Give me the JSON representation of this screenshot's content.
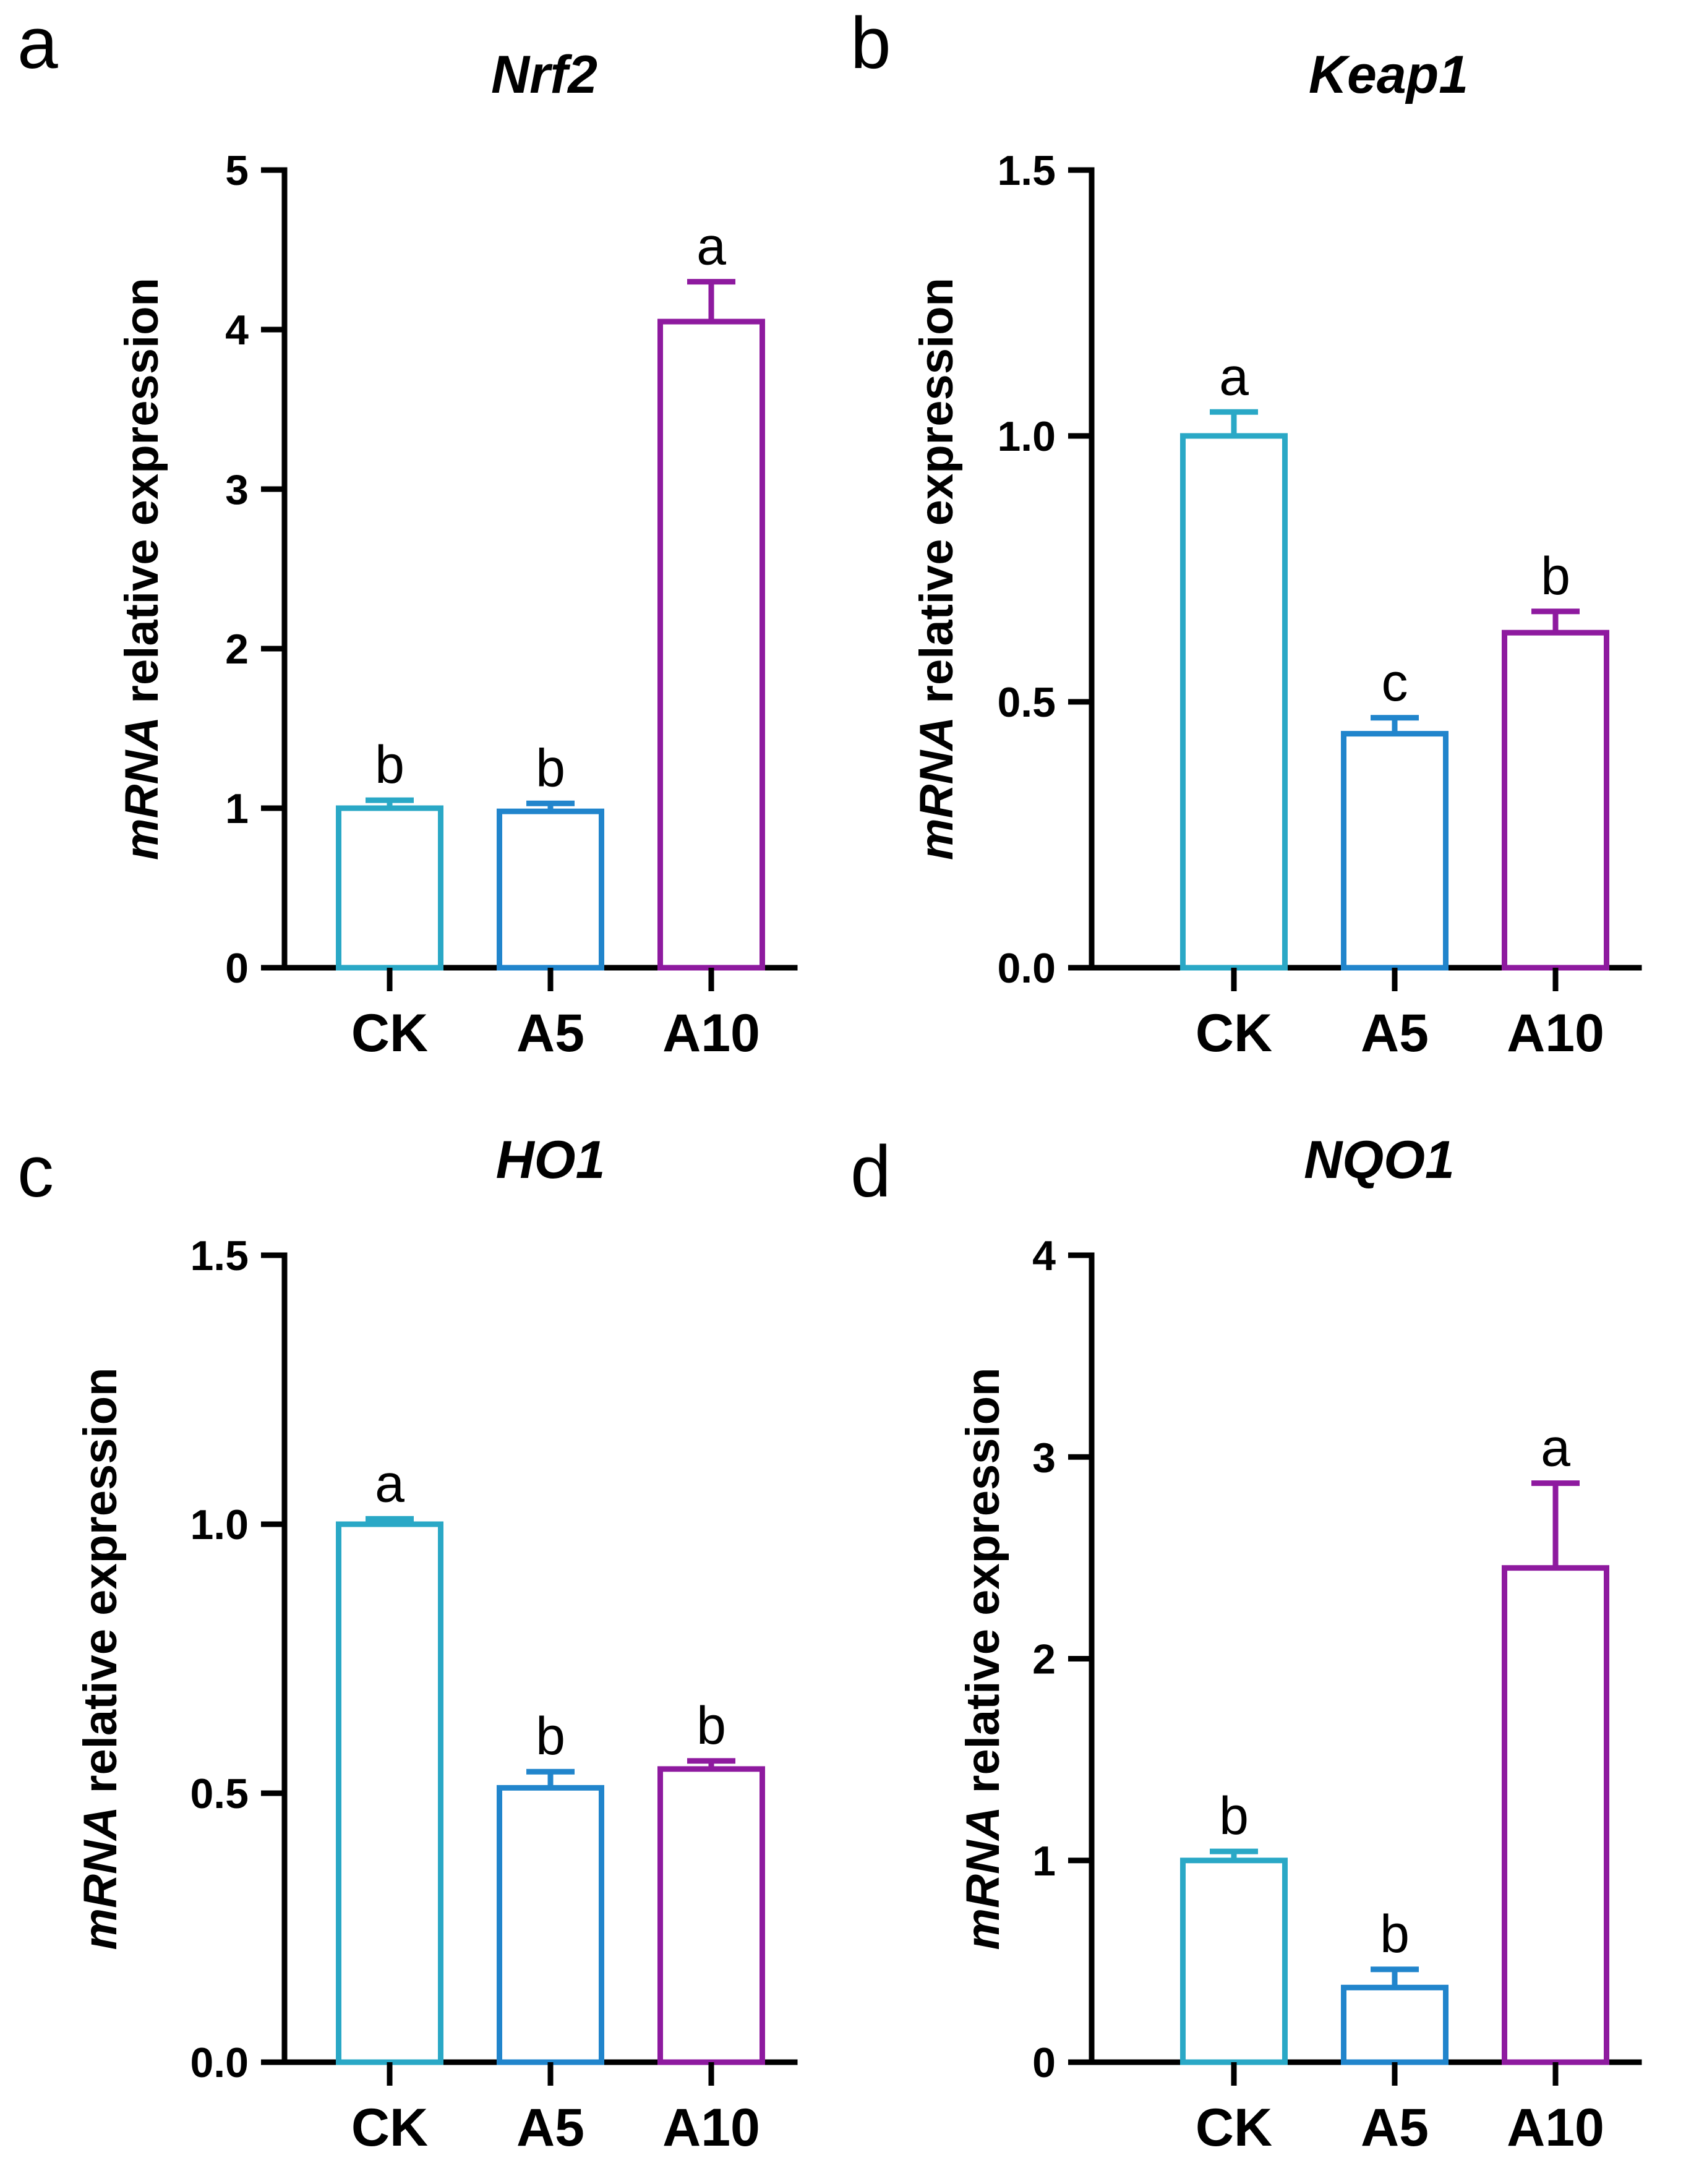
{
  "chart_data": [
    {
      "type": "bar",
      "panel": "a",
      "title": "Nrf2",
      "ylabel_italic": "mRNA",
      "ylabel_rest": " relative expression",
      "xlabel": "",
      "categories": [
        "CK",
        "A5",
        "A10"
      ],
      "values": [
        1.0,
        0.98,
        4.05
      ],
      "errors": [
        0.05,
        0.05,
        0.25
      ],
      "significance": [
        "b",
        "b",
        "a"
      ],
      "colors": [
        "#2aa8c6",
        "#2185cc",
        "#8e1a9f"
      ],
      "ylim": [
        0,
        5
      ],
      "yticks": [
        0,
        1,
        2,
        3,
        4,
        5
      ],
      "ytick_labels": [
        "0",
        "1",
        "2",
        "3",
        "4",
        "5"
      ],
      "grid": false
    },
    {
      "type": "bar",
      "panel": "b",
      "title": "Keap1",
      "ylabel_italic": "mRNA",
      "ylabel_rest": " relative expression",
      "xlabel": "",
      "categories": [
        "CK",
        "A5",
        "A10"
      ],
      "values": [
        1.0,
        0.44,
        0.63
      ],
      "errors": [
        0.045,
        0.03,
        0.04
      ],
      "significance": [
        "a",
        "c",
        "b"
      ],
      "colors": [
        "#2aa8c6",
        "#2185cc",
        "#8e1a9f"
      ],
      "ylim": [
        0,
        1.5
      ],
      "yticks": [
        0,
        0.5,
        1.0,
        1.5
      ],
      "ytick_labels": [
        "0.0",
        "0.5",
        "1.0",
        "1.5"
      ],
      "grid": false
    },
    {
      "type": "bar",
      "panel": "c",
      "title": "HO1",
      "ylabel_italic": "mRNA",
      "ylabel_rest": " relative expression",
      "xlabel": "",
      "categories": [
        "CK",
        "A5",
        "A10"
      ],
      "values": [
        1.0,
        0.51,
        0.545
      ],
      "errors": [
        0.01,
        0.03,
        0.015
      ],
      "significance": [
        "a",
        "b",
        "b"
      ],
      "colors": [
        "#2aa8c6",
        "#2185cc",
        "#8e1a9f"
      ],
      "ylim": [
        0,
        1.5
      ],
      "yticks": [
        0,
        0.5,
        1.0,
        1.5
      ],
      "ytick_labels": [
        "0.0",
        "0.5",
        "1.0",
        "1.5"
      ],
      "grid": false
    },
    {
      "type": "bar",
      "panel": "d",
      "title": "NQO1",
      "ylabel_italic": "mRNA",
      "ylabel_rest": " relative expression",
      "xlabel": "",
      "categories": [
        "CK",
        "A5",
        "A10"
      ],
      "values": [
        1.0,
        0.37,
        2.45
      ],
      "errors": [
        0.045,
        0.09,
        0.42
      ],
      "significance": [
        "b",
        "b",
        "a"
      ],
      "colors": [
        "#2aa8c6",
        "#2185cc",
        "#8e1a9f"
      ],
      "ylim": [
        0,
        4
      ],
      "yticks": [
        0,
        1,
        2,
        3,
        4
      ],
      "ytick_labels": [
        "0",
        "1",
        "2",
        "3",
        "4"
      ],
      "grid": false
    }
  ]
}
